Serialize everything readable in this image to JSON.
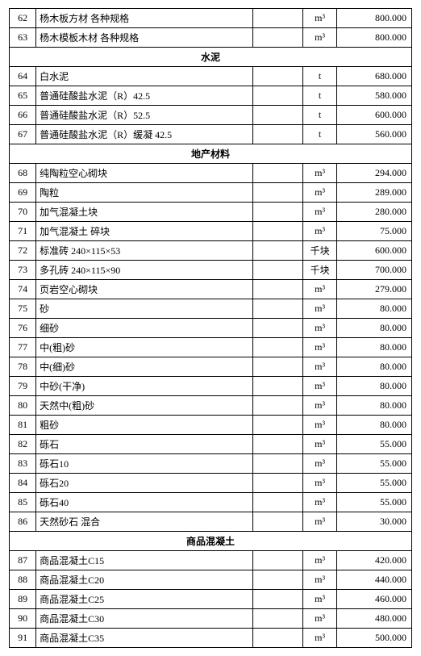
{
  "rows": [
    {
      "type": "data",
      "idx": "62",
      "name": "杨木板方材 各种规格",
      "unit": "m³",
      "price": "800.000"
    },
    {
      "type": "data",
      "idx": "63",
      "name": "杨木模板木材 各种规格",
      "unit": "m³",
      "price": "800.000"
    },
    {
      "type": "section",
      "title": "水泥"
    },
    {
      "type": "data",
      "idx": "64",
      "name": "白水泥",
      "unit": "t",
      "price": "680.000"
    },
    {
      "type": "data",
      "idx": "65",
      "name": "普通硅酸盐水泥（R）42.5",
      "unit": "t",
      "price": "580.000"
    },
    {
      "type": "data",
      "idx": "66",
      "name": "普通硅酸盐水泥（R）52.5",
      "unit": "t",
      "price": "600.000"
    },
    {
      "type": "data",
      "idx": "67",
      "name": "普通硅酸盐水泥（R）缓凝 42.5",
      "unit": "t",
      "price": "560.000"
    },
    {
      "type": "section",
      "title": "地产材料"
    },
    {
      "type": "data",
      "idx": "68",
      "name": "纯陶粒空心砌块",
      "unit": "m³",
      "price": "294.000"
    },
    {
      "type": "data",
      "idx": "69",
      "name": "陶粒",
      "unit": "m³",
      "price": "289.000"
    },
    {
      "type": "data",
      "idx": "70",
      "name": "加气混凝土块",
      "unit": "m³",
      "price": "280.000"
    },
    {
      "type": "data",
      "idx": "71",
      "name": "加气混凝土 碎块",
      "unit": "m³",
      "price": "75.000"
    },
    {
      "type": "data",
      "idx": "72",
      "name": "标准砖 240×115×53",
      "unit": "千块",
      "price": "600.000"
    },
    {
      "type": "data",
      "idx": "73",
      "name": "多孔砖 240×115×90",
      "unit": "千块",
      "price": "700.000"
    },
    {
      "type": "data",
      "idx": "74",
      "name": "页岩空心砌块",
      "unit": "m³",
      "price": "279.000"
    },
    {
      "type": "data",
      "idx": "75",
      "name": "砂",
      "unit": "m³",
      "price": "80.000"
    },
    {
      "type": "data",
      "idx": "76",
      "name": "细砂",
      "unit": "m³",
      "price": "80.000"
    },
    {
      "type": "data",
      "idx": "77",
      "name": "中(粗)砂",
      "unit": "m³",
      "price": "80.000"
    },
    {
      "type": "data",
      "idx": "78",
      "name": "中(细)砂",
      "unit": "m³",
      "price": "80.000"
    },
    {
      "type": "data",
      "idx": "79",
      "name": "中砂(干净)",
      "unit": "m³",
      "price": "80.000"
    },
    {
      "type": "data",
      "idx": "80",
      "name": "天然中(粗)砂",
      "unit": "m³",
      "price": "80.000"
    },
    {
      "type": "data",
      "idx": "81",
      "name": "粗砂",
      "unit": "m³",
      "price": "80.000"
    },
    {
      "type": "data",
      "idx": "82",
      "name": "砾石",
      "unit": "m³",
      "price": "55.000"
    },
    {
      "type": "data",
      "idx": "83",
      "name": "砾石10",
      "unit": "m³",
      "price": "55.000"
    },
    {
      "type": "data",
      "idx": "84",
      "name": "砾石20",
      "unit": "m³",
      "price": "55.000"
    },
    {
      "type": "data",
      "idx": "85",
      "name": "砾石40",
      "unit": "m³",
      "price": "55.000"
    },
    {
      "type": "data",
      "idx": "86",
      "name": "天然砂石 混合",
      "unit": "m³",
      "price": "30.000"
    },
    {
      "type": "section",
      "title": "商品混凝土"
    },
    {
      "type": "data",
      "idx": "87",
      "name": "商品混凝土C15",
      "unit": "m³",
      "price": "420.000"
    },
    {
      "type": "data",
      "idx": "88",
      "name": "商品混凝土C20",
      "unit": "m³",
      "price": "440.000"
    },
    {
      "type": "data",
      "idx": "89",
      "name": "商品混凝土C25",
      "unit": "m³",
      "price": "460.000"
    },
    {
      "type": "data",
      "idx": "90",
      "name": "商品混凝土C30",
      "unit": "m³",
      "price": "480.000"
    },
    {
      "type": "data",
      "idx": "91",
      "name": "商品混凝土C35",
      "unit": "m³",
      "price": "500.000"
    }
  ]
}
